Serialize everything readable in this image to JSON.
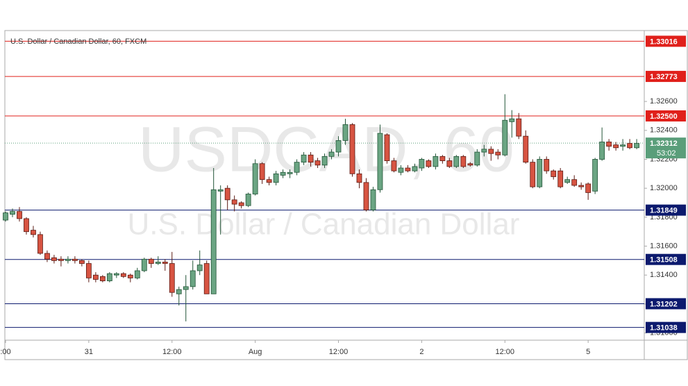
{
  "chart_data": {
    "type": "candlestick",
    "title": "U.S. Dollar / Canadian Dollar, 60, FXCM",
    "watermark": "USDCAD, 60",
    "watermark_subtitle": "U.S. Dollar / Canadian Dollar",
    "categories": [
      ":00",
      null,
      null,
      null,
      null,
      null,
      null,
      null,
      null,
      null,
      null,
      null,
      "31",
      null,
      null,
      null,
      null,
      null,
      null,
      null,
      null,
      null,
      null,
      null,
      "12:00",
      null,
      null,
      null,
      null,
      null,
      null,
      null,
      null,
      null,
      null,
      null,
      "Aug",
      null,
      null,
      null,
      null,
      null,
      null,
      null,
      null,
      null,
      null,
      null,
      "12:00",
      null,
      null,
      null,
      null,
      null,
      null,
      null,
      null,
      null,
      null,
      null,
      "2",
      null,
      null,
      null,
      null,
      null,
      null,
      null,
      null,
      null,
      null,
      null,
      "12:00",
      null,
      null,
      null,
      null,
      null,
      null,
      null,
      null,
      null,
      null,
      null,
      "5",
      null,
      null,
      null,
      null,
      null,
      null,
      null
    ],
    "open": [
      1.3178,
      1.3182,
      1.3184,
      1.3179,
      1.3171,
      1.3168,
      1.3155,
      1.3152,
      1.3151,
      1.315,
      1.3151,
      1.315,
      1.3148,
      1.314,
      1.3139,
      1.3136,
      1.314,
      1.3141,
      1.314,
      1.3138,
      1.3143,
      1.3151,
      1.3148,
      1.3149,
      1.3148,
      1.3127,
      1.313,
      1.3132,
      1.3143,
      1.3148,
      1.3127,
      1.3198,
      1.32,
      1.3192,
      1.319,
      1.3188,
      1.3196,
      1.3217,
      1.3206,
      1.3204,
      1.3209,
      1.321,
      1.3211,
      1.3218,
      1.3223,
      1.3219,
      1.3216,
      1.3222,
      1.3225,
      1.3233,
      1.3244,
      1.321,
      1.3204,
      1.3185,
      1.3199,
      1.3237,
      1.3219,
      1.3211,
      1.3214,
      1.3212,
      1.3214,
      1.3219,
      1.3215,
      1.3222,
      1.3219,
      1.3215,
      1.3222,
      1.3217,
      1.3216,
      1.3225,
      1.3227,
      1.3225,
      1.3223,
      1.3246,
      1.3248,
      1.3236,
      1.3218,
      1.3201,
      1.322,
      1.3212,
      1.3212,
      1.3204,
      1.3206,
      1.3202,
      1.3203,
      1.3198,
      1.322,
      1.3232,
      1.323,
      1.3229,
      1.3231,
      1.3228
    ],
    "high": [
      1.3184,
      1.3186,
      1.3187,
      1.318,
      1.3174,
      1.317,
      1.3157,
      1.3154,
      1.3153,
      1.3153,
      1.3153,
      1.3151,
      1.315,
      1.3142,
      1.314,
      1.3142,
      1.3142,
      1.3142,
      1.3141,
      1.3145,
      1.3152,
      1.3152,
      1.3153,
      1.3151,
      1.3156,
      1.3132,
      1.314,
      1.315,
      1.3157,
      1.315,
      1.3214,
      1.3202,
      1.3202,
      1.3195,
      1.3191,
      1.3197,
      1.322,
      1.3218,
      1.3208,
      1.3212,
      1.3213,
      1.3213,
      1.322,
      1.3225,
      1.3225,
      1.3221,
      1.3224,
      1.3227,
      1.3236,
      1.3248,
      1.3245,
      1.3213,
      1.3207,
      1.3201,
      1.3244,
      1.3238,
      1.3221,
      1.3216,
      1.3216,
      1.3217,
      1.3221,
      1.322,
      1.3224,
      1.3223,
      1.3221,
      1.3223,
      1.3223,
      1.3218,
      1.3227,
      1.323,
      1.3229,
      1.3227,
      1.3265,
      1.3254,
      1.3252,
      1.324,
      1.322,
      1.3222,
      1.3222,
      1.3213,
      1.3214,
      1.3208,
      1.3209,
      1.3204,
      1.3204,
      1.3221,
      1.3242,
      1.3234,
      1.3232,
      1.3234,
      1.3234,
      1.3234
    ],
    "low": [
      1.3177,
      1.318,
      1.3177,
      1.3168,
      1.3166,
      1.3154,
      1.3149,
      1.3148,
      1.3146,
      1.3148,
      1.3148,
      1.3146,
      1.3135,
      1.3135,
      1.3135,
      1.3135,
      1.3138,
      1.3138,
      1.3135,
      1.3137,
      1.3142,
      1.3145,
      1.3147,
      1.3143,
      1.3125,
      1.3119,
      1.3108,
      1.313,
      1.314,
      1.3127,
      1.3127,
      1.3168,
      1.3185,
      1.3184,
      1.3186,
      1.3187,
      1.3195,
      1.3203,
      1.3202,
      1.3202,
      1.3207,
      1.3207,
      1.3209,
      1.3216,
      1.3215,
      1.3214,
      1.3214,
      1.322,
      1.3222,
      1.323,
      1.3208,
      1.32,
      1.3184,
      1.3184,
      1.3197,
      1.3217,
      1.3211,
      1.3209,
      1.3211,
      1.3211,
      1.3212,
      1.3214,
      1.3213,
      1.3217,
      1.3214,
      1.3214,
      1.3214,
      1.3215,
      1.3215,
      1.3222,
      1.3219,
      1.322,
      1.3222,
      1.3235,
      1.3234,
      1.3217,
      1.32,
      1.32,
      1.321,
      1.3206,
      1.32,
      1.3203,
      1.3201,
      1.3199,
      1.3192,
      1.3196,
      1.3219,
      1.3226,
      1.3226,
      1.3226,
      1.3227,
      1.3227
    ],
    "close": [
      1.3183,
      1.3184,
      1.3179,
      1.317,
      1.3168,
      1.3155,
      1.3151,
      1.315,
      1.315,
      1.3151,
      1.315,
      1.3148,
      1.3138,
      1.3137,
      1.3136,
      1.3141,
      1.3141,
      1.3139,
      1.3138,
      1.3143,
      1.3151,
      1.3148,
      1.3149,
      1.3148,
      1.3128,
      1.313,
      1.3132,
      1.3143,
      1.3147,
      1.3127,
      1.3199,
      1.3199,
      1.3192,
      1.3189,
      1.3188,
      1.3196,
      1.3217,
      1.3206,
      1.3204,
      1.321,
      1.3211,
      1.3211,
      1.3218,
      1.3223,
      1.3218,
      1.3216,
      1.3222,
      1.3225,
      1.3233,
      1.3244,
      1.321,
      1.3204,
      1.3185,
      1.3199,
      1.3238,
      1.3219,
      1.3212,
      1.3214,
      1.3212,
      1.3215,
      1.322,
      1.3215,
      1.3222,
      1.3219,
      1.3215,
      1.3222,
      1.3215,
      1.3216,
      1.3225,
      1.3227,
      1.3224,
      1.3223,
      1.3247,
      1.3248,
      1.3236,
      1.3218,
      1.3201,
      1.322,
      1.3212,
      1.3208,
      1.3201,
      1.3206,
      1.3202,
      1.3201,
      1.3197,
      1.322,
      1.3232,
      1.3229,
      1.3228,
      1.323,
      1.3228,
      1.3231
    ],
    "up_color": "#6ba583",
    "down_color": "#d75442",
    "ylim": [
      1.3095,
      1.3309
    ],
    "yticks": [
      {
        "value": 1.31,
        "label": "1.31000"
      },
      {
        "value": 1.312,
        "label": "1.31200"
      },
      {
        "value": 1.314,
        "label": "1.31400"
      },
      {
        "value": 1.316,
        "label": "1.31600"
      },
      {
        "value": 1.318,
        "label": "1.31800"
      },
      {
        "value": 1.32,
        "label": "1.32000"
      },
      {
        "value": 1.322,
        "label": "1.32200"
      },
      {
        "value": 1.324,
        "label": "1.32400"
      },
      {
        "value": 1.326,
        "label": "1.32600"
      }
    ],
    "levels": [
      {
        "value": 1.33016,
        "label": "1.33016",
        "color": "#e0201b"
      },
      {
        "value": 1.32773,
        "label": "1.32773",
        "color": "#e0201b"
      },
      {
        "value": 1.325,
        "label": "1.32500",
        "color": "#e0201b"
      },
      {
        "value": 1.31849,
        "label": "1.31849",
        "color": "#0c1a6e"
      },
      {
        "value": 1.31508,
        "label": "1.31508",
        "color": "#0c1a6e"
      },
      {
        "value": 1.31202,
        "label": "1.31202",
        "color": "#0c1a6e"
      },
      {
        "value": 1.31038,
        "label": "1.31038",
        "color": "#0c1a6e"
      }
    ],
    "last_price": {
      "value": 1.32312,
      "label": "1.32312",
      "countdown": "53:02",
      "color": "#5a9e7a"
    }
  }
}
